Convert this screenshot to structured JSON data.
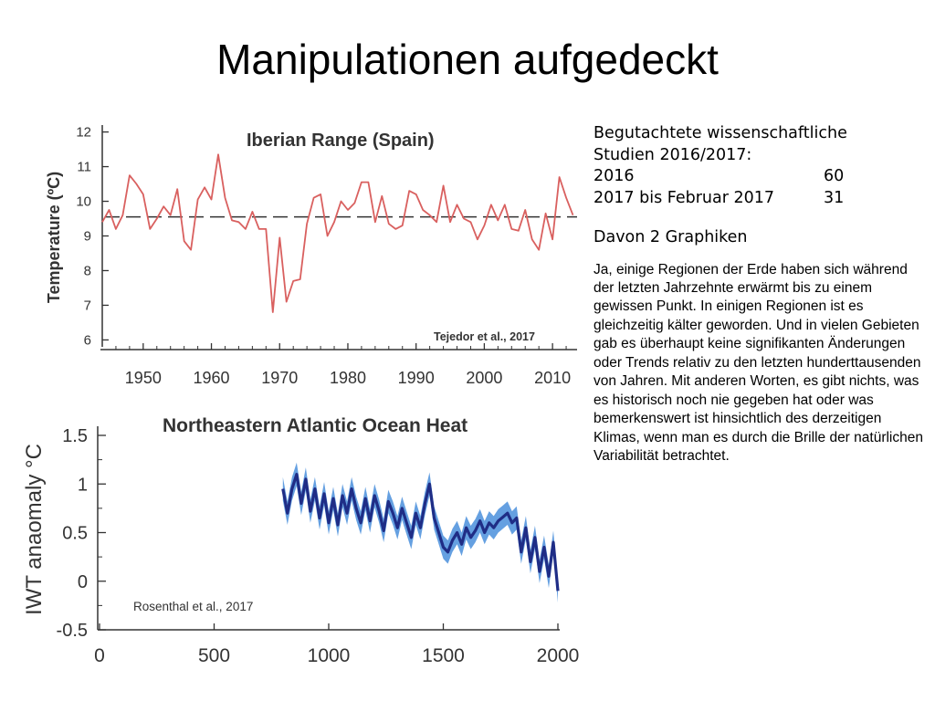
{
  "slide": {
    "title": "Manipulationen aufgedeckt"
  },
  "sidebar": {
    "heading_line1": "Begutachtete wissenschaftliche",
    "heading_line2": "Studien 2016/2017:",
    "rows": [
      {
        "label": "2016",
        "value": "60"
      },
      {
        "label": "2017 bis Februar 2017",
        "value": "31"
      }
    ],
    "graphs_note": "Davon 2 Graphiken",
    "paragraph": "Ja, einige Regionen der Erde haben sich während der letzten Jahrzehnte erwärmt bis zu einem gewissen Punkt. In einigen Regionen ist es gleichzeitig kälter geworden. Und in vielen Gebieten gab es überhaupt keine signifikanten Änderungen oder Trends relativ zu den letzten hunderttausenden von Jahren. Mit anderen Worten, es gibt nichts, was es historisch noch nie gegeben hat oder was bemerkenswert ist hinsichtlich des derzeitigen Klimas, wenn man es durch die Brille der natürlichen Variabilität betrachtet."
  },
  "chart_data": [
    {
      "type": "line",
      "title": "Iberian Range (Spain)",
      "ylabel": "Temperature (ºC)",
      "xlabel": "",
      "xlim": [
        1944,
        2014
      ],
      "ylim": [
        5.8,
        12.2
      ],
      "x_ticks": [
        1950,
        1960,
        1970,
        1980,
        1990,
        2000,
        2010
      ],
      "y_ticks": [
        6,
        7,
        8,
        9,
        10,
        11,
        12
      ],
      "reference_line": 9.55,
      "annotation": "Tejedor et al., 2017",
      "color": "#d9605f",
      "x": [
        1944,
        1945,
        1946,
        1947,
        1948,
        1949,
        1950,
        1951,
        1952,
        1953,
        1954,
        1955,
        1956,
        1957,
        1958,
        1959,
        1960,
        1961,
        1962,
        1963,
        1964,
        1965,
        1966,
        1967,
        1968,
        1969,
        1970,
        1971,
        1972,
        1973,
        1974,
        1975,
        1976,
        1977,
        1978,
        1979,
        1980,
        1981,
        1982,
        1983,
        1984,
        1985,
        1986,
        1987,
        1988,
        1989,
        1990,
        1991,
        1992,
        1993,
        1994,
        1995,
        1996,
        1997,
        1998,
        1999,
        2000,
        2001,
        2002,
        2003,
        2004,
        2005,
        2006,
        2007,
        2008,
        2009,
        2010,
        2011,
        2012,
        2013
      ],
      "values": [
        9.4,
        9.75,
        9.2,
        9.6,
        10.75,
        10.5,
        10.2,
        9.2,
        9.5,
        9.85,
        9.6,
        10.35,
        8.85,
        8.6,
        10.05,
        10.4,
        10.05,
        11.35,
        10.1,
        9.45,
        9.4,
        9.2,
        9.7,
        9.2,
        9.2,
        6.8,
        8.95,
        7.1,
        7.7,
        7.75,
        9.35,
        10.1,
        10.2,
        9.0,
        9.4,
        10.0,
        9.75,
        9.95,
        10.55,
        10.55,
        9.4,
        10.15,
        9.35,
        9.2,
        9.3,
        10.3,
        10.2,
        9.75,
        9.6,
        9.4,
        10.45,
        9.4,
        9.9,
        9.5,
        9.4,
        8.9,
        9.3,
        9.9,
        9.45,
        9.9,
        9.2,
        9.15,
        9.75,
        8.9,
        8.6,
        9.65,
        8.9,
        10.7,
        10.1,
        9.6
      ]
    },
    {
      "type": "line",
      "title": "Northeastern Atlantic Ocean Heat",
      "ylabel": "IWT anaomaly °C",
      "xlabel": "",
      "xlim": [
        0,
        2000
      ],
      "ylim": [
        -0.5,
        1.5
      ],
      "x_ticks": [
        0,
        500,
        1000,
        1500,
        2000
      ],
      "y_ticks": [
        -0.5,
        0,
        0.5,
        1,
        1.5
      ],
      "y_tick_labels": [
        "-0.5",
        "0",
        "0.5",
        "1",
        "1.5"
      ],
      "annotation": "Rosenthal et al., 2017",
      "line_color": "#1f2d86",
      "band_color": "#4a8fdc",
      "band_halfwidth": 0.12,
      "x": [
        800,
        820,
        840,
        860,
        880,
        900,
        920,
        940,
        960,
        980,
        1000,
        1020,
        1040,
        1060,
        1080,
        1100,
        1120,
        1140,
        1160,
        1180,
        1200,
        1220,
        1240,
        1260,
        1280,
        1300,
        1320,
        1340,
        1360,
        1380,
        1400,
        1420,
        1440,
        1460,
        1480,
        1500,
        1520,
        1540,
        1560,
        1580,
        1600,
        1620,
        1640,
        1660,
        1680,
        1700,
        1720,
        1740,
        1760,
        1780,
        1800,
        1820,
        1840,
        1860,
        1880,
        1900,
        1920,
        1940,
        1960,
        1980,
        2000
      ],
      "values": [
        0.95,
        0.7,
        0.95,
        1.1,
        0.8,
        1.05,
        0.72,
        0.95,
        0.65,
        0.9,
        0.6,
        0.85,
        0.58,
        0.88,
        0.7,
        0.95,
        0.75,
        0.6,
        0.85,
        0.62,
        0.88,
        0.72,
        0.52,
        0.82,
        0.7,
        0.55,
        0.75,
        0.6,
        0.45,
        0.7,
        0.55,
        0.8,
        1.0,
        0.65,
        0.5,
        0.35,
        0.3,
        0.42,
        0.5,
        0.38,
        0.55,
        0.45,
        0.52,
        0.62,
        0.5,
        0.6,
        0.55,
        0.62,
        0.66,
        0.7,
        0.6,
        0.65,
        0.3,
        0.55,
        0.2,
        0.45,
        0.1,
        0.35,
        0.05,
        0.4,
        -0.1
      ]
    }
  ]
}
